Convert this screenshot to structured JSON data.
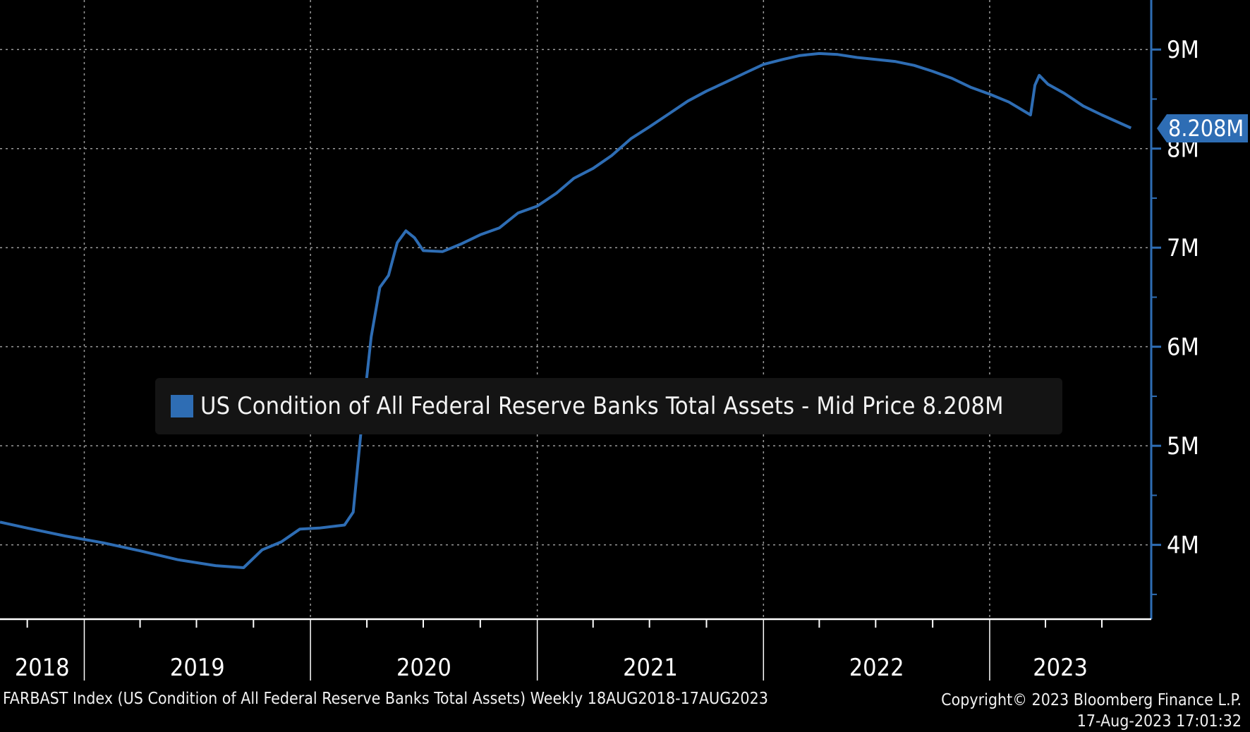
{
  "chart_data": {
    "type": "line",
    "series": [
      {
        "name": "US Condition of All Federal Reserve Banks Total Assets - Mid Price 8.208M",
        "color": "#2e6db4",
        "points": [
          [
            "2018-08-18",
            4.23
          ],
          [
            "2018-10-01",
            4.17
          ],
          [
            "2018-12-01",
            4.09
          ],
          [
            "2019-02-01",
            4.02
          ],
          [
            "2019-04-01",
            3.94
          ],
          [
            "2019-06-01",
            3.85
          ],
          [
            "2019-08-01",
            3.79
          ],
          [
            "2019-09-15",
            3.77
          ],
          [
            "2019-10-15",
            3.95
          ],
          [
            "2019-11-15",
            4.03
          ],
          [
            "2019-12-15",
            4.16
          ],
          [
            "2020-01-15",
            4.17
          ],
          [
            "2020-02-25",
            4.2
          ],
          [
            "2020-03-10",
            4.33
          ],
          [
            "2020-03-25",
            5.3
          ],
          [
            "2020-04-08",
            6.1
          ],
          [
            "2020-04-22",
            6.6
          ],
          [
            "2020-05-06",
            6.72
          ],
          [
            "2020-05-20",
            7.05
          ],
          [
            "2020-06-03",
            7.17
          ],
          [
            "2020-06-17",
            7.1
          ],
          [
            "2020-07-01",
            6.97
          ],
          [
            "2020-08-01",
            6.96
          ],
          [
            "2020-09-01",
            7.04
          ],
          [
            "2020-10-01",
            7.13
          ],
          [
            "2020-11-01",
            7.2
          ],
          [
            "2020-12-01",
            7.35
          ],
          [
            "2021-01-01",
            7.42
          ],
          [
            "2021-02-01",
            7.55
          ],
          [
            "2021-03-01",
            7.7
          ],
          [
            "2021-04-01",
            7.8
          ],
          [
            "2021-05-01",
            7.93
          ],
          [
            "2021-06-01",
            8.1
          ],
          [
            "2021-07-01",
            8.22
          ],
          [
            "2021-08-01",
            8.35
          ],
          [
            "2021-09-01",
            8.48
          ],
          [
            "2021-10-01",
            8.58
          ],
          [
            "2021-11-01",
            8.67
          ],
          [
            "2021-12-01",
            8.76
          ],
          [
            "2022-01-01",
            8.85
          ],
          [
            "2022-02-01",
            8.9
          ],
          [
            "2022-03-01",
            8.94
          ],
          [
            "2022-04-01",
            8.96
          ],
          [
            "2022-05-01",
            8.95
          ],
          [
            "2022-06-01",
            8.92
          ],
          [
            "2022-07-01",
            8.9
          ],
          [
            "2022-08-01",
            8.88
          ],
          [
            "2022-09-01",
            8.84
          ],
          [
            "2022-10-01",
            8.78
          ],
          [
            "2022-11-01",
            8.71
          ],
          [
            "2022-12-01",
            8.62
          ],
          [
            "2023-01-01",
            8.55
          ],
          [
            "2023-02-01",
            8.47
          ],
          [
            "2023-03-08",
            8.34
          ],
          [
            "2023-03-15",
            8.64
          ],
          [
            "2023-03-22",
            8.74
          ],
          [
            "2023-04-05",
            8.65
          ],
          [
            "2023-05-01",
            8.56
          ],
          [
            "2023-06-01",
            8.43
          ],
          [
            "2023-07-01",
            8.34
          ],
          [
            "2023-08-17",
            8.208
          ]
        ]
      }
    ],
    "x_ticks": [
      "2018",
      "2019",
      "2020",
      "2021",
      "2022",
      "2023"
    ],
    "y_ticks": [
      "4M",
      "5M",
      "6M",
      "7M",
      "8M",
      "9M"
    ],
    "x_range": [
      "2018-08-18",
      "2023-08-17"
    ],
    "ylim": [
      3.25,
      9.5
    ],
    "grid": true,
    "legend_position": "center",
    "last_value_label": "8.208M"
  },
  "legend": {
    "label": "US Condition of All Federal Reserve Banks Total Assets - Mid Price 8.208M"
  },
  "footer": {
    "left": "FARBAST Index (US Condition of All Federal Reserve Banks Total Assets)  Weekly 18AUG2018-17AUG2023",
    "right_line1": "Copyright© 2023 Bloomberg Finance L.P.",
    "right_line2": "17-Aug-2023 17:01:32"
  }
}
